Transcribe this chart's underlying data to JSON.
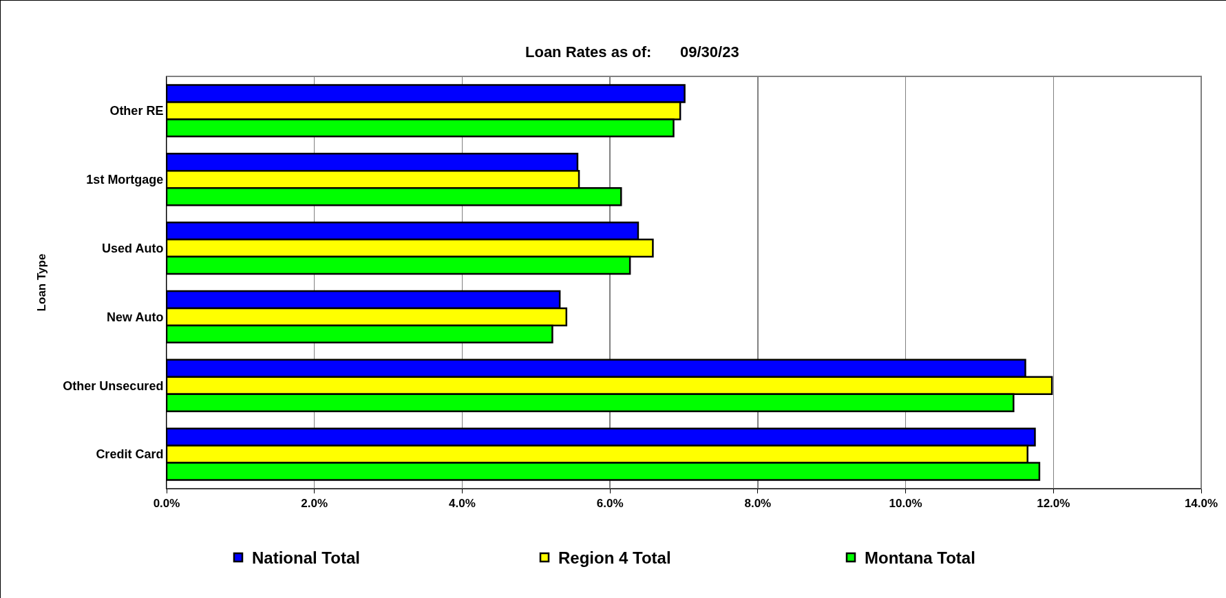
{
  "chart_data": {
    "type": "bar",
    "orientation": "horizontal",
    "title": "Loan Rates as of:",
    "subtitle": "09/30/23",
    "ylabel": "Loan Type",
    "categories": [
      "Other RE",
      "1st Mortgage",
      "Used Auto",
      "New Auto",
      "Other Unsecured",
      "Credit Card"
    ],
    "series": [
      {
        "name": "National Total",
        "color": "#0000ff",
        "values": [
          7.01,
          5.56,
          6.38,
          5.32,
          11.62,
          11.75
        ]
      },
      {
        "name": "Region 4 Total",
        "color": "#ffff00",
        "values": [
          6.95,
          5.58,
          6.58,
          5.41,
          11.98,
          11.65
        ]
      },
      {
        "name": "Montana Total",
        "color": "#00ff00",
        "values": [
          6.86,
          6.15,
          6.27,
          5.22,
          11.46,
          11.81
        ]
      }
    ],
    "xlim": [
      0,
      14
    ],
    "xticks": [
      {
        "value": 0,
        "label": "0.0%"
      },
      {
        "value": 2,
        "label": "2.0%"
      },
      {
        "value": 4,
        "label": "4.0%"
      },
      {
        "value": 6,
        "label": "6.0%"
      },
      {
        "value": 8,
        "label": "8.0%"
      },
      {
        "value": 10,
        "label": "10.0%"
      },
      {
        "value": 12,
        "label": "12.0%"
      },
      {
        "value": 14,
        "label": "14.0%"
      }
    ],
    "grid": "x",
    "legend": "bottom"
  }
}
